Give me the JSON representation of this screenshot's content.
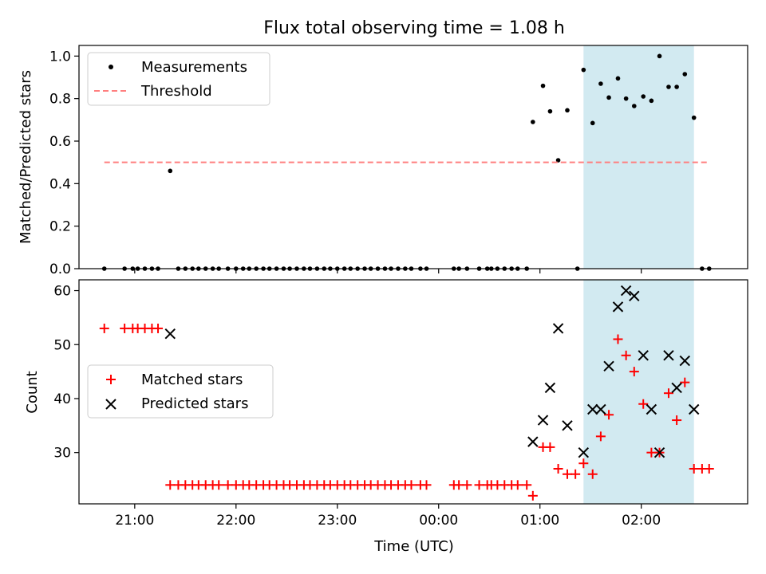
{
  "figure": {
    "title": "Flux total observing time = 1.08 h",
    "xlabel": "Time (UTC)",
    "x_ticks": [
      "21:00",
      "22:00",
      "23:00",
      "00:00",
      "01:00",
      "02:00"
    ],
    "x_tick_hours": [
      21,
      22,
      23,
      24,
      25,
      26
    ],
    "xlim_hours": [
      20.45,
      27.05
    ],
    "shaded_region_hours": [
      25.43,
      26.52
    ],
    "shade_color": "#add8e6"
  },
  "chart_data": [
    {
      "type": "scatter",
      "title": "Flux total observing time = 1.08 h",
      "ylabel": "Matched/Predicted stars",
      "ylim": [
        0,
        1.05
      ],
      "y_ticks": [
        0.0,
        0.2,
        0.4,
        0.6,
        0.8,
        1.0
      ],
      "y_tick_labels": [
        "0.0",
        "0.2",
        "0.4",
        "0.6",
        "0.8",
        "1.0"
      ],
      "legend": {
        "position": "upper left",
        "entries": [
          "Measurements",
          "Threshold"
        ]
      },
      "series": [
        {
          "name": "Measurements",
          "marker": "dot",
          "color": "#000000",
          "points": [
            [
              20.7,
              0
            ],
            [
              20.9,
              0
            ],
            [
              20.98,
              0
            ],
            [
              21.03,
              0
            ],
            [
              21.1,
              0
            ],
            [
              21.17,
              0
            ],
            [
              21.23,
              0
            ],
            [
              21.35,
              0.46
            ],
            [
              21.43,
              0
            ],
            [
              21.5,
              0
            ],
            [
              21.57,
              0
            ],
            [
              21.63,
              0
            ],
            [
              21.7,
              0
            ],
            [
              21.77,
              0
            ],
            [
              21.83,
              0
            ],
            [
              21.92,
              0
            ],
            [
              22.0,
              0
            ],
            [
              22.07,
              0
            ],
            [
              22.13,
              0
            ],
            [
              22.2,
              0
            ],
            [
              22.27,
              0
            ],
            [
              22.33,
              0
            ],
            [
              22.4,
              0
            ],
            [
              22.47,
              0
            ],
            [
              22.53,
              0
            ],
            [
              22.6,
              0
            ],
            [
              22.67,
              0
            ],
            [
              22.73,
              0
            ],
            [
              22.8,
              0
            ],
            [
              22.87,
              0
            ],
            [
              22.93,
              0
            ],
            [
              23.0,
              0
            ],
            [
              23.07,
              0
            ],
            [
              23.13,
              0
            ],
            [
              23.2,
              0
            ],
            [
              23.27,
              0
            ],
            [
              23.33,
              0
            ],
            [
              23.4,
              0
            ],
            [
              23.47,
              0
            ],
            [
              23.53,
              0
            ],
            [
              23.6,
              0
            ],
            [
              23.67,
              0
            ],
            [
              23.73,
              0
            ],
            [
              23.82,
              0
            ],
            [
              23.88,
              0
            ],
            [
              24.15,
              0
            ],
            [
              24.2,
              0
            ],
            [
              24.28,
              0
            ],
            [
              24.4,
              0
            ],
            [
              24.48,
              0
            ],
            [
              24.52,
              0
            ],
            [
              24.58,
              0
            ],
            [
              24.65,
              0
            ],
            [
              24.72,
              0
            ],
            [
              24.78,
              0
            ],
            [
              24.87,
              0
            ],
            [
              24.93,
              0.69
            ],
            [
              25.03,
              0.86
            ],
            [
              25.1,
              0.74
            ],
            [
              25.18,
              0.51
            ],
            [
              25.27,
              0.745
            ],
            [
              25.37,
              0
            ],
            [
              25.43,
              0.935
            ],
            [
              25.52,
              0.685
            ],
            [
              25.6,
              0.87
            ],
            [
              25.68,
              0.805
            ],
            [
              25.77,
              0.895
            ],
            [
              25.85,
              0.8
            ],
            [
              25.93,
              0.765
            ],
            [
              26.02,
              0.81
            ],
            [
              26.1,
              0.79
            ],
            [
              26.18,
              1.0
            ],
            [
              26.27,
              0.855
            ],
            [
              26.35,
              0.855
            ],
            [
              26.43,
              0.915
            ],
            [
              26.52,
              0.71
            ],
            [
              26.6,
              0
            ],
            [
              26.67,
              0
            ]
          ]
        },
        {
          "name": "Threshold",
          "marker": "dashed-line",
          "color": "#ff7f7f",
          "points": [
            [
              20.7,
              0.5
            ],
            [
              26.67,
              0.5
            ]
          ]
        }
      ]
    },
    {
      "type": "scatter",
      "ylabel": "Count",
      "ylim": [
        20.5,
        62
      ],
      "y_ticks": [
        30,
        40,
        50,
        60
      ],
      "y_tick_labels": [
        "30",
        "40",
        "50",
        "60"
      ],
      "legend": {
        "position": "center left",
        "entries": [
          "Matched stars",
          "Predicted stars"
        ]
      },
      "series": [
        {
          "name": "Matched stars",
          "marker": "plus",
          "color": "#ff0000",
          "points": [
            [
              20.7,
              53
            ],
            [
              20.9,
              53
            ],
            [
              20.98,
              53
            ],
            [
              21.03,
              53
            ],
            [
              21.1,
              53
            ],
            [
              21.17,
              53
            ],
            [
              21.23,
              53
            ],
            [
              21.35,
              24
            ],
            [
              21.43,
              24
            ],
            [
              21.5,
              24
            ],
            [
              21.57,
              24
            ],
            [
              21.63,
              24
            ],
            [
              21.7,
              24
            ],
            [
              21.77,
              24
            ],
            [
              21.83,
              24
            ],
            [
              21.92,
              24
            ],
            [
              22.0,
              24
            ],
            [
              22.07,
              24
            ],
            [
              22.13,
              24
            ],
            [
              22.2,
              24
            ],
            [
              22.27,
              24
            ],
            [
              22.33,
              24
            ],
            [
              22.4,
              24
            ],
            [
              22.47,
              24
            ],
            [
              22.53,
              24
            ],
            [
              22.6,
              24
            ],
            [
              22.67,
              24
            ],
            [
              22.73,
              24
            ],
            [
              22.8,
              24
            ],
            [
              22.87,
              24
            ],
            [
              22.93,
              24
            ],
            [
              23.0,
              24
            ],
            [
              23.07,
              24
            ],
            [
              23.13,
              24
            ],
            [
              23.2,
              24
            ],
            [
              23.27,
              24
            ],
            [
              23.33,
              24
            ],
            [
              23.4,
              24
            ],
            [
              23.47,
              24
            ],
            [
              23.53,
              24
            ],
            [
              23.6,
              24
            ],
            [
              23.67,
              24
            ],
            [
              23.73,
              24
            ],
            [
              23.82,
              24
            ],
            [
              23.88,
              24
            ],
            [
              24.15,
              24
            ],
            [
              24.2,
              24
            ],
            [
              24.28,
              24
            ],
            [
              24.4,
              24
            ],
            [
              24.48,
              24
            ],
            [
              24.52,
              24
            ],
            [
              24.58,
              24
            ],
            [
              24.65,
              24
            ],
            [
              24.72,
              24
            ],
            [
              24.78,
              24
            ],
            [
              24.87,
              24
            ],
            [
              24.93,
              22
            ],
            [
              25.03,
              31
            ],
            [
              25.1,
              31
            ],
            [
              25.18,
              27
            ],
            [
              25.27,
              26
            ],
            [
              25.35,
              26
            ],
            [
              25.43,
              28
            ],
            [
              25.52,
              26
            ],
            [
              25.6,
              33
            ],
            [
              25.68,
              37
            ],
            [
              25.77,
              51
            ],
            [
              25.85,
              48
            ],
            [
              25.93,
              45
            ],
            [
              26.02,
              39
            ],
            [
              26.1,
              30
            ],
            [
              26.18,
              30
            ],
            [
              26.27,
              41
            ],
            [
              26.35,
              36
            ],
            [
              26.43,
              43
            ],
            [
              26.52,
              27
            ],
            [
              26.6,
              27
            ],
            [
              26.67,
              27
            ]
          ]
        },
        {
          "name": "Predicted stars",
          "marker": "x",
          "color": "#000000",
          "points": [
            [
              21.35,
              52
            ],
            [
              24.93,
              32
            ],
            [
              25.03,
              36
            ],
            [
              25.1,
              42
            ],
            [
              25.18,
              53
            ],
            [
              25.27,
              35
            ],
            [
              25.43,
              30
            ],
            [
              25.52,
              38
            ],
            [
              25.6,
              38
            ],
            [
              25.68,
              46
            ],
            [
              25.77,
              57
            ],
            [
              25.85,
              60
            ],
            [
              25.93,
              59
            ],
            [
              26.02,
              48
            ],
            [
              26.1,
              38
            ],
            [
              26.18,
              30
            ],
            [
              26.27,
              48
            ],
            [
              26.35,
              42
            ],
            [
              26.43,
              47
            ],
            [
              26.52,
              38
            ]
          ]
        }
      ]
    }
  ]
}
